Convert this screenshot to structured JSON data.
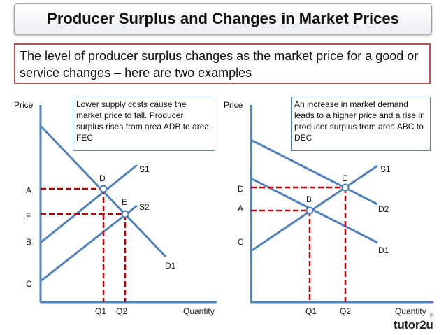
{
  "title": "Producer Surplus and Changes in Market Prices",
  "subtitle": "The level of producer surplus changes as the market price for a good or service changes – here are two examples",
  "left_diagram": {
    "y_axis_label": "Price",
    "x_axis_label": "Quantity",
    "note": "Lower supply costs cause the market price to fall. Producer surplus rises from area ADB to area FEC",
    "curve_labels": {
      "s1": "S1",
      "s2": "S2",
      "d1": "D1"
    },
    "point_labels": {
      "d": "D",
      "e": "E"
    },
    "y_labels": {
      "a": "A",
      "f": "F",
      "b": "B",
      "c": "C"
    },
    "x_labels": {
      "q1": "Q1",
      "q2": "Q2"
    }
  },
  "right_diagram": {
    "y_axis_label": "Price",
    "x_axis_label": "Quantity",
    "note": "An increase in market demand leads to a higher price and a rise in producer surplus from area ABC to DEC",
    "curve_labels": {
      "s1": "S1",
      "d2": "D2",
      "d1": "D1"
    },
    "point_labels": {
      "e": "E",
      "b": "B"
    },
    "y_labels": {
      "d": "D",
      "a": "A",
      "c": "C"
    },
    "x_labels": {
      "q1": "Q1",
      "q2": "Q2"
    }
  },
  "logo": {
    "text": "tutor2u"
  },
  "colors": {
    "curve": "#4f81bd",
    "dashed": "#c00000",
    "note_border": "#4f81bd",
    "subtitle_border": "#c0504d"
  }
}
